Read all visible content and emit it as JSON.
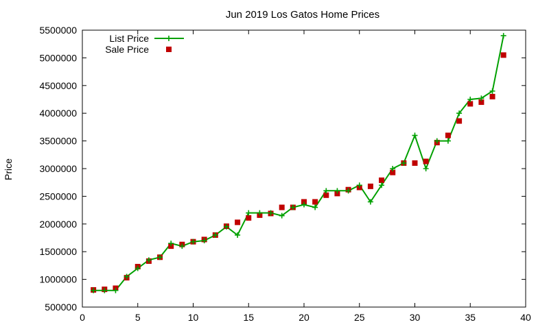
{
  "chart_data": {
    "type": "line",
    "title": "Jun 2019 Los Gatos Home Prices",
    "xlabel": "",
    "ylabel": "Price",
    "xlim": [
      0,
      40
    ],
    "ylim": [
      500000,
      5500000
    ],
    "x_ticks": [
      "0",
      "5",
      "10",
      "15",
      "20",
      "25",
      "30",
      "35",
      "40"
    ],
    "y_ticks": [
      "500000",
      "1000000",
      "1500000",
      "2000000",
      "2500000",
      "3000000",
      "3500000",
      "4000000",
      "4500000",
      "5000000",
      "5500000"
    ],
    "grid": false,
    "legend_position": "top-left",
    "colors": {
      "list_price": "#00a000",
      "sale_price": "#c00000"
    },
    "series": [
      {
        "name": "List Price",
        "style": "line-with-plus-markers",
        "x": [
          1,
          2,
          3,
          4,
          5,
          6,
          7,
          8,
          9,
          10,
          11,
          12,
          13,
          14,
          15,
          16,
          17,
          18,
          19,
          20,
          21,
          22,
          23,
          24,
          25,
          26,
          27,
          28,
          29,
          30,
          31,
          32,
          33,
          34,
          35,
          36,
          37,
          38
        ],
        "values": [
          800000,
          800000,
          800000,
          1050000,
          1200000,
          1350000,
          1400000,
          1650000,
          1600000,
          1680000,
          1700000,
          1800000,
          1950000,
          1800000,
          2200000,
          2200000,
          2200000,
          2150000,
          2300000,
          2350000,
          2300000,
          2600000,
          2600000,
          2600000,
          2700000,
          2400000,
          2700000,
          3000000,
          3100000,
          3600000,
          3000000,
          3500000,
          3500000,
          4000000,
          4250000,
          4270000,
          4400000,
          5400000
        ]
      },
      {
        "name": "Sale Price",
        "style": "square-markers",
        "x": [
          1,
          2,
          3,
          4,
          5,
          6,
          7,
          8,
          9,
          10,
          11,
          12,
          13,
          14,
          15,
          16,
          17,
          18,
          19,
          20,
          21,
          22,
          23,
          24,
          25,
          26,
          27,
          28,
          29,
          30,
          31,
          32,
          33,
          34,
          35,
          36,
          37,
          38
        ],
        "values": [
          810000,
          820000,
          840000,
          1030000,
          1230000,
          1330000,
          1400000,
          1600000,
          1630000,
          1680000,
          1720000,
          1800000,
          1960000,
          2030000,
          2110000,
          2160000,
          2190000,
          2300000,
          2300000,
          2400000,
          2400000,
          2520000,
          2550000,
          2620000,
          2660000,
          2680000,
          2790000,
          2930000,
          3100000,
          3100000,
          3130000,
          3470000,
          3600000,
          3860000,
          4170000,
          4200000,
          4300000,
          5050000
        ]
      }
    ]
  }
}
